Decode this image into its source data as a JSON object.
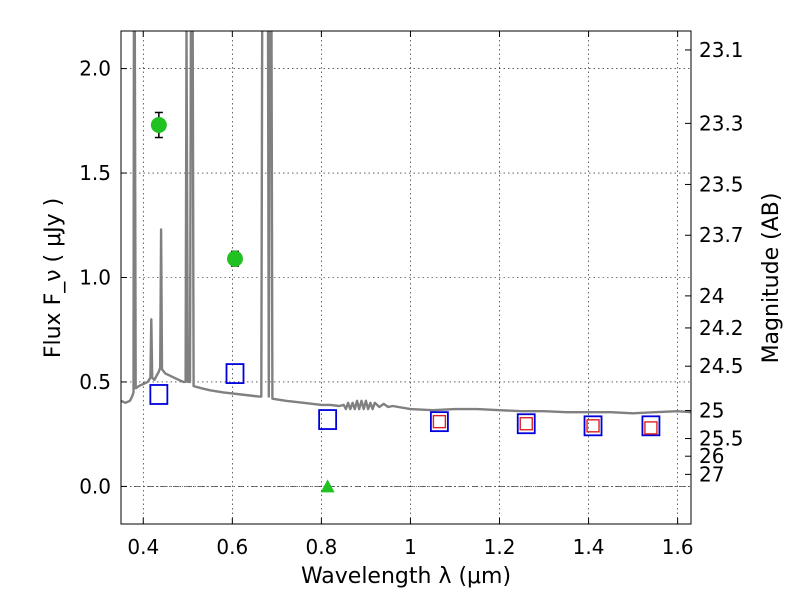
{
  "chart_data": {
    "type": "scatter",
    "xlabel": "Wavelength  λ (μm)",
    "ylabel": "Flux  F_ν  ( μJy )",
    "ylabel_right": "Magnitude (AB)",
    "xlim": [
      0.35,
      1.63
    ],
    "ylim": [
      -0.18,
      2.18
    ],
    "x_ticks": [
      0.4,
      0.6,
      0.8,
      1.0,
      1.2,
      1.4,
      1.6
    ],
    "x_tick_labels": [
      "0.4",
      "0.6",
      "0.8",
      "1",
      "1.2",
      "1.4",
      "1.6"
    ],
    "y_ticks": [
      0.0,
      0.5,
      1.0,
      1.5,
      2.0
    ],
    "y_tick_labels": [
      "0.0",
      "0.5",
      "1.0",
      "1.5",
      "2.0"
    ],
    "right_ticks": [
      {
        "label": "23.1",
        "value": 23.1
      },
      {
        "label": "23.3",
        "value": 23.3
      },
      {
        "label": "23.5",
        "value": 23.5
      },
      {
        "label": "23.7",
        "value": 23.7
      },
      {
        "label": "24",
        "value": 24.0
      },
      {
        "label": "24.2",
        "value": 24.2
      },
      {
        "label": "24.5",
        "value": 24.5
      },
      {
        "label": "25",
        "value": 25.0
      },
      {
        "label": "25.5",
        "value": 25.5
      },
      {
        "label": "26",
        "value": 26.0
      },
      {
        "label": "27",
        "value": 27.0
      }
    ],
    "grid": true,
    "colors": {
      "model": "#808080",
      "observed": "#22c122",
      "model_band": "#0000dd",
      "model_band_inner": "#dd2222"
    },
    "series": [
      {
        "type": "line",
        "points": [
          [
            0.35,
            0.41
          ],
          [
            0.36,
            0.4
          ],
          [
            0.37,
            0.41
          ],
          [
            0.375,
            0.43
          ],
          [
            0.378,
            0.45
          ],
          [
            0.379,
            2.2
          ],
          [
            0.381,
            2.2
          ],
          [
            0.383,
            0.47
          ],
          [
            0.39,
            0.48
          ],
          [
            0.4,
            0.49
          ],
          [
            0.41,
            0.5
          ],
          [
            0.416,
            0.52
          ],
          [
            0.418,
            0.8
          ],
          [
            0.42,
            0.52
          ],
          [
            0.425,
            0.51
          ],
          [
            0.43,
            0.53
          ],
          [
            0.435,
            0.55
          ],
          [
            0.438,
            0.57
          ],
          [
            0.44,
            1.23
          ],
          [
            0.442,
            0.56
          ],
          [
            0.45,
            0.54
          ],
          [
            0.46,
            0.53
          ],
          [
            0.47,
            0.52
          ],
          [
            0.48,
            0.51
          ],
          [
            0.49,
            0.5
          ],
          [
            0.495,
            0.5
          ],
          [
            0.497,
            2.2
          ],
          [
            0.5,
            0.5
          ],
          [
            0.505,
            0.5
          ],
          [
            0.507,
            2.2
          ],
          [
            0.511,
            2.2
          ],
          [
            0.513,
            0.48
          ],
          [
            0.53,
            0.47
          ],
          [
            0.55,
            0.46
          ],
          [
            0.58,
            0.45
          ],
          [
            0.6,
            0.445
          ],
          [
            0.62,
            0.44
          ],
          [
            0.64,
            0.435
          ],
          [
            0.66,
            0.43
          ],
          [
            0.665,
            0.43
          ],
          [
            0.667,
            2.2
          ],
          [
            0.68,
            2.2
          ],
          [
            0.682,
            0.43
          ],
          [
            0.684,
            2.2
          ],
          [
            0.688,
            2.2
          ],
          [
            0.69,
            0.42
          ],
          [
            0.72,
            0.41
          ],
          [
            0.76,
            0.4
          ],
          [
            0.8,
            0.39
          ],
          [
            0.82,
            0.39
          ],
          [
            0.84,
            0.385
          ],
          [
            0.85,
            0.39
          ],
          [
            0.855,
            0.37
          ],
          [
            0.86,
            0.4
          ],
          [
            0.865,
            0.37
          ],
          [
            0.87,
            0.4
          ],
          [
            0.875,
            0.37
          ],
          [
            0.88,
            0.41
          ],
          [
            0.885,
            0.37
          ],
          [
            0.89,
            0.41
          ],
          [
            0.895,
            0.37
          ],
          [
            0.9,
            0.41
          ],
          [
            0.905,
            0.37
          ],
          [
            0.91,
            0.4
          ],
          [
            0.915,
            0.37
          ],
          [
            0.92,
            0.4
          ],
          [
            0.93,
            0.38
          ],
          [
            0.94,
            0.395
          ],
          [
            0.95,
            0.38
          ],
          [
            0.96,
            0.385
          ],
          [
            1.0,
            0.37
          ],
          [
            1.05,
            0.365
          ],
          [
            1.1,
            0.37
          ],
          [
            1.15,
            0.37
          ],
          [
            1.2,
            0.365
          ],
          [
            1.25,
            0.36
          ],
          [
            1.3,
            0.36
          ],
          [
            1.35,
            0.355
          ],
          [
            1.4,
            0.355
          ],
          [
            1.45,
            0.355
          ],
          [
            1.5,
            0.35
          ],
          [
            1.55,
            0.355
          ],
          [
            1.6,
            0.36
          ],
          [
            1.63,
            0.355
          ]
        ]
      },
      {
        "type": "scatter",
        "marker": "circle-errorbar",
        "points": [
          {
            "x": 0.435,
            "y": 1.73,
            "err": 0.06
          },
          {
            "x": 0.606,
            "y": 1.09,
            "err": 0.035
          }
        ]
      },
      {
        "type": "scatter",
        "marker": "triangle-errorbar",
        "points": [
          {
            "x": 0.814,
            "y": 0.0,
            "err": 0.02
          }
        ]
      },
      {
        "type": "scatter",
        "marker": "open-square",
        "points": [
          {
            "x": 0.435,
            "y": 0.44
          },
          {
            "x": 0.606,
            "y": 0.54
          },
          {
            "x": 0.814,
            "y": 0.32
          },
          {
            "x": 1.065,
            "y": 0.31
          },
          {
            "x": 1.26,
            "y": 0.3
          },
          {
            "x": 1.41,
            "y": 0.29
          },
          {
            "x": 1.54,
            "y": 0.29
          }
        ]
      },
      {
        "type": "scatter",
        "marker": "small-open-square",
        "points": [
          {
            "x": 1.065,
            "y": 0.31
          },
          {
            "x": 1.26,
            "y": 0.3
          },
          {
            "x": 1.41,
            "y": 0.29
          },
          {
            "x": 1.54,
            "y": 0.28
          }
        ]
      }
    ]
  }
}
